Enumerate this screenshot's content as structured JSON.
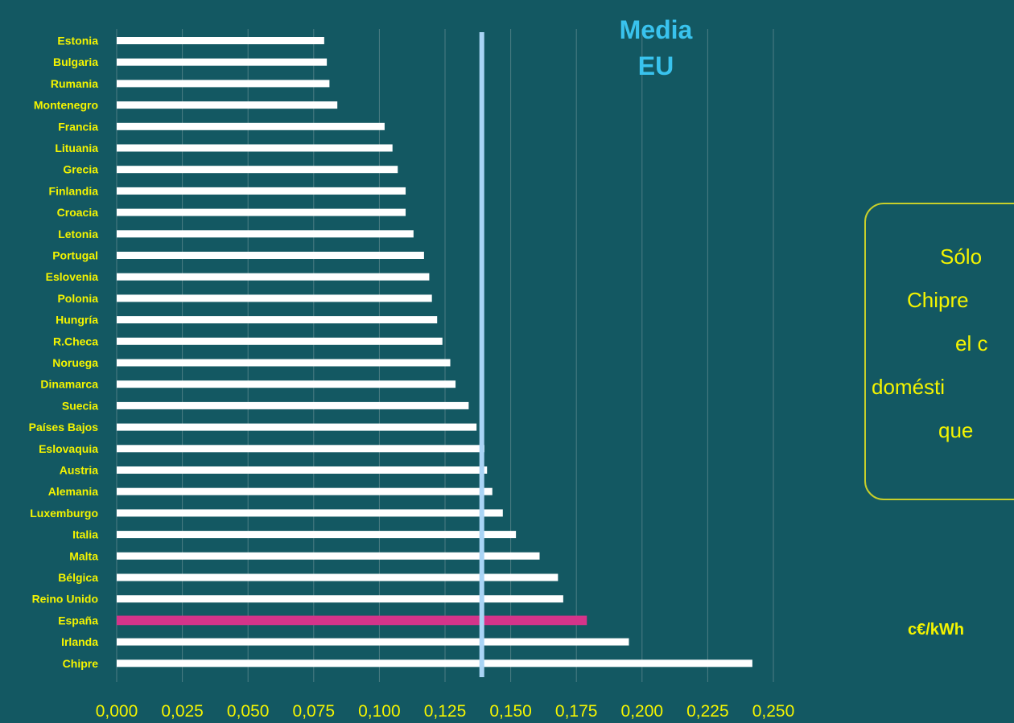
{
  "chart_data": {
    "type": "bar",
    "orientation": "horizontal",
    "categories": [
      "Estonia",
      "Bulgaria",
      "Rumania",
      "Montenegro",
      "Francia",
      "Lituania",
      "Grecia",
      "Finlandia",
      "Croacia",
      "Letonia",
      "Portugal",
      "Eslovenia",
      "Polonia",
      "Hungría",
      "R.Checa",
      "Noruega",
      "Dinamarca",
      "Suecia",
      "Países Bajos",
      "Eslovaquia",
      "Austria",
      "Alemania",
      "Luxemburgo",
      "Italia",
      "Malta",
      "Bélgica",
      "Reino Unido",
      "España",
      "Irlanda",
      "Chipre"
    ],
    "values": [
      0.079,
      0.08,
      0.081,
      0.084,
      0.102,
      0.105,
      0.107,
      0.11,
      0.11,
      0.113,
      0.117,
      0.119,
      0.12,
      0.122,
      0.124,
      0.127,
      0.129,
      0.134,
      0.137,
      0.14,
      0.141,
      0.143,
      0.147,
      0.152,
      0.161,
      0.168,
      0.17,
      0.179,
      0.195,
      0.242
    ],
    "highlight": {
      "category": "España",
      "color": "#d4348a"
    },
    "bar_color": "#ffffff",
    "xlim": [
      0,
      0.25
    ],
    "xticks": [
      0,
      0.025,
      0.05,
      0.075,
      0.1,
      0.125,
      0.15,
      0.175,
      0.2,
      0.225,
      0.25
    ],
    "xtick_labels": [
      "0,000",
      "0,025",
      "0,050",
      "0,075",
      "0,100",
      "0,125",
      "0,150",
      "0,175",
      "0,200",
      "0,225",
      "0,250"
    ],
    "grid": "vertical",
    "reference_line": {
      "value": 0.139,
      "label_line1": "Media",
      "label_line2": "EU",
      "color": "#a9d4f5"
    },
    "unit_label": "c€/kWh"
  },
  "annotation": {
    "lines": [
      "Sólo",
      "Chipre",
      "el c",
      "domésti",
      "que"
    ]
  },
  "colors": {
    "background": "#135862",
    "text": "#f4f400",
    "media_label": "#39c3ee",
    "grid": "#4c7d84"
  }
}
